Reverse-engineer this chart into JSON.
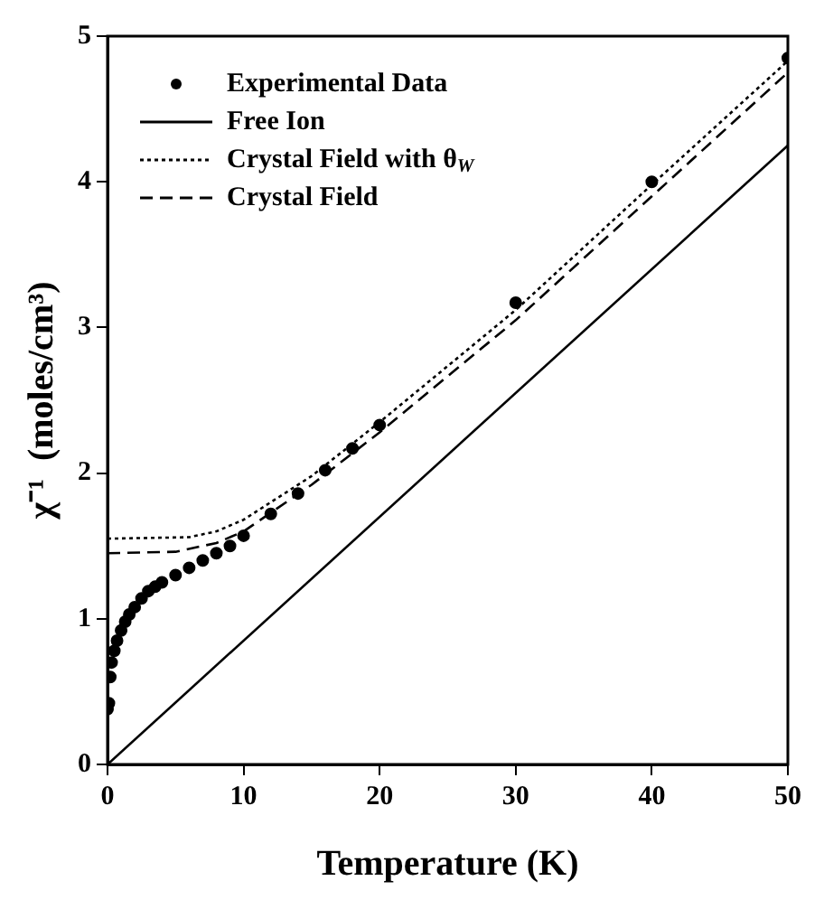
{
  "chart_data": {
    "type": "line",
    "xlabel": "Temperature (K)",
    "ylabel": "χ⁻¹  (moles/cm³)",
    "xlim": [
      0,
      50
    ],
    "xticks": [
      0,
      10,
      20,
      30,
      40,
      50
    ],
    "ylim": [
      0,
      5
    ],
    "yticks": [
      0,
      1,
      2,
      3,
      4,
      5
    ],
    "grid": false,
    "legend": "top left",
    "series": [
      {
        "name": "Experimental Data",
        "type": "scatter",
        "marker": "circle",
        "color": "#000000",
        "x": [
          0,
          0.1,
          0.2,
          0.3,
          0.5,
          0.7,
          1,
          1.3,
          1.6,
          2,
          2.5,
          3,
          3.5,
          4,
          5,
          6,
          7,
          8,
          9,
          10,
          12,
          14,
          16,
          18,
          20,
          30,
          40,
          50
        ],
        "values": [
          0.38,
          0.42,
          0.6,
          0.7,
          0.78,
          0.85,
          0.92,
          0.98,
          1.03,
          1.08,
          1.14,
          1.19,
          1.22,
          1.25,
          1.3,
          1.35,
          1.4,
          1.45,
          1.5,
          1.57,
          1.72,
          1.86,
          2.02,
          2.17,
          2.33,
          3.17,
          4.0,
          4.85
        ]
      },
      {
        "name": "Free Ion",
        "marker": "none",
        "line_style": "solid",
        "color": "#000000",
        "x": [
          0,
          50
        ],
        "values": [
          0,
          4.25
        ]
      },
      {
        "name": "Crystal Field with θ$_{W}$",
        "marker": "none",
        "line_style": "dotted",
        "color": "#000000",
        "x": [
          0,
          6,
          8,
          10,
          15,
          20,
          30,
          40,
          50
        ],
        "values": [
          1.55,
          1.56,
          1.6,
          1.68,
          1.98,
          2.35,
          3.12,
          3.98,
          4.83
        ]
      },
      {
        "name": "Crystal Field",
        "marker": "none",
        "line_style": "dashed",
        "color": "#000000",
        "x": [
          0,
          5,
          8,
          10,
          15,
          20,
          30,
          40,
          50
        ],
        "values": [
          1.45,
          1.46,
          1.52,
          1.6,
          1.92,
          2.28,
          3.05,
          3.9,
          4.75
        ]
      }
    ]
  }
}
